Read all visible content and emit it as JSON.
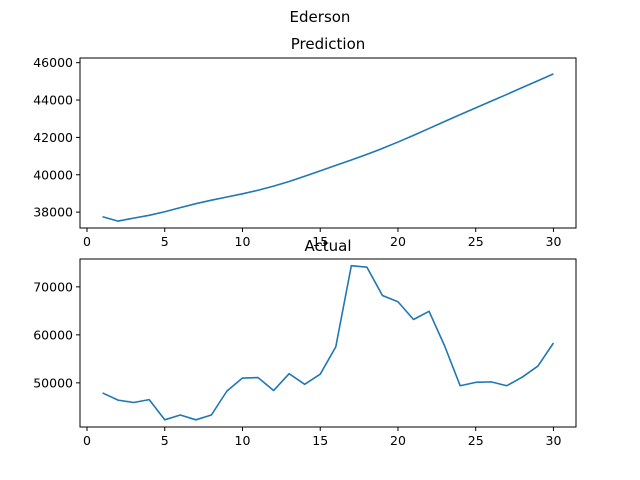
{
  "figure": {
    "suptitle": "Ederson"
  },
  "chart_data": [
    {
      "type": "line",
      "title": "Prediction",
      "xlabel": "",
      "ylabel": "",
      "xlim": [
        -0.45,
        31.45
      ],
      "ylim": [
        37150,
        46250
      ],
      "xticks": [
        0,
        5,
        10,
        15,
        20,
        25,
        30
      ],
      "yticks": [
        38000,
        40000,
        42000,
        44000,
        46000
      ],
      "grid": false,
      "line_color": "#1f77b4",
      "series": [
        {
          "x": [
            1,
            2,
            3,
            4,
            5,
            6,
            7,
            8,
            9,
            10,
            11,
            12,
            13,
            14,
            15,
            16,
            17,
            18,
            19,
            20,
            21,
            22,
            23,
            24,
            25,
            26,
            27,
            28,
            29,
            30
          ],
          "values": [
            37750,
            37520,
            37680,
            37830,
            38020,
            38240,
            38450,
            38640,
            38810,
            38980,
            39170,
            39390,
            39640,
            39920,
            40210,
            40500,
            40790,
            41090,
            41410,
            41750,
            42110,
            42480,
            42850,
            43220,
            43580,
            43940,
            44300,
            44670,
            45030,
            45400
          ]
        }
      ]
    },
    {
      "type": "line",
      "title": "Actual",
      "xlabel": "",
      "ylabel": "",
      "xlim": [
        -0.45,
        31.45
      ],
      "ylim": [
        40800,
        75800
      ],
      "xticks": [
        0,
        5,
        10,
        15,
        20,
        25,
        30
      ],
      "yticks": [
        50000,
        60000,
        70000
      ],
      "grid": false,
      "line_color": "#1f77b4",
      "series": [
        {
          "x": [
            1,
            2,
            3,
            4,
            5,
            6,
            7,
            8,
            9,
            10,
            11,
            12,
            13,
            14,
            15,
            16,
            17,
            18,
            19,
            20,
            21,
            22,
            23,
            24,
            25,
            26,
            27,
            28,
            29,
            30
          ],
          "values": [
            47900,
            46400,
            45900,
            46500,
            42300,
            43300,
            42300,
            43300,
            48300,
            51000,
            51100,
            48400,
            51900,
            49700,
            51800,
            57500,
            74400,
            74100,
            68200,
            66900,
            63200,
            64900,
            57700,
            49400,
            50100,
            50200,
            49400,
            51200,
            53500,
            58300
          ]
        }
      ]
    }
  ]
}
